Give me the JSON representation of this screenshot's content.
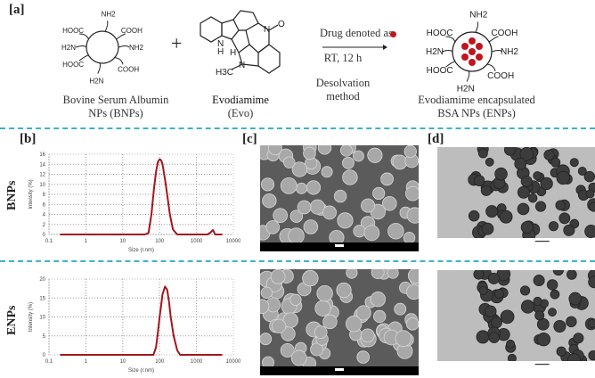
{
  "panel_labels": {
    "a": "[a]",
    "b": "[b]",
    "c": "[c]",
    "d": "[d]"
  },
  "scheme": {
    "bnp_caption_1": "Bovine Serum Albumin",
    "bnp_caption_2": "NPs (BNPs)",
    "plus": "+",
    "evo_caption_1": "Evodiamime",
    "evo_caption_2": "(Evo)",
    "arrow_top": "Drug denoted as",
    "arrow_bottom": "RT, 12 h",
    "method_1": "Desolvation",
    "method_2": "method",
    "enp_caption_1": "Evodiamime encapsulated",
    "enp_caption_2": "BSA NPs (ENPs)",
    "groups": [
      "HOOC",
      "NH2",
      "COOH",
      "H2N",
      "NH2",
      "HOOC",
      "COOH",
      "H2N"
    ],
    "evo_atoms": {
      "nh": "N",
      "h": "H",
      "h2": "H",
      "n1": "N",
      "o": "O",
      "n2": "N",
      "ch3": "H3C"
    },
    "drug_color": "#c0151f"
  },
  "row_labels": {
    "bnps": "BNPs",
    "enps": "ENPs"
  },
  "chart_data": [
    {
      "type": "line",
      "name": "BNPs",
      "xlabel": "Size (r.nm)",
      "ylabel": "Intensity (%)",
      "xscale": "log",
      "xlim": [
        0.1,
        10000
      ],
      "ylim": [
        0,
        16
      ],
      "xticks": [
        "0.1",
        "1",
        "10",
        "100",
        "1000",
        "10000"
      ],
      "yticks": [
        "0",
        "2",
        "4",
        "6",
        "8",
        "10",
        "12",
        "14",
        "16"
      ],
      "grid": true,
      "color": "#a3161c",
      "x": [
        0.2,
        40,
        50,
        60,
        70,
        80,
        90,
        100,
        110,
        120,
        140,
        160,
        190,
        230,
        300,
        2000,
        2400,
        2800,
        3200,
        5000
      ],
      "y": [
        0,
        0,
        0.3,
        4,
        9,
        12.5,
        14.5,
        15,
        14.8,
        14,
        11,
        8,
        4,
        1,
        0,
        0,
        0.4,
        0.9,
        0,
        0
      ]
    },
    {
      "type": "line",
      "name": "ENPs",
      "xlabel": "Size (r.nm)",
      "ylabel": "Intensity (%)",
      "xscale": "log",
      "xlim": [
        0.1,
        10000
      ],
      "ylim": [
        0,
        20
      ],
      "xticks": [
        "0.1",
        "1",
        "10",
        "100",
        "1000",
        "10000"
      ],
      "yticks": [
        "0",
        "5",
        "10",
        "15",
        "20"
      ],
      "grid": true,
      "color": "#a3161c",
      "x": [
        0.2,
        68,
        80,
        90,
        100,
        110,
        120,
        140,
        160,
        180,
        200,
        240,
        300,
        360,
        5000
      ],
      "y": [
        0,
        0,
        2,
        6,
        10,
        13,
        16,
        18,
        17.2,
        14,
        10,
        5,
        1.2,
        0,
        0
      ]
    }
  ]
}
